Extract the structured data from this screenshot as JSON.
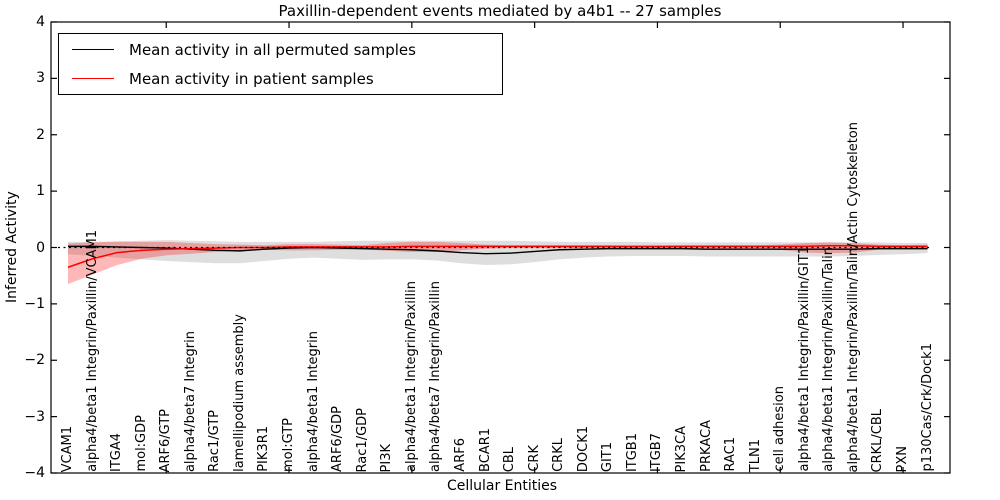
{
  "chart_data": {
    "type": "line",
    "title": "Paxillin-dependent events mediated by a4b1 -- 27 samples",
    "xlabel": "Cellular Entities",
    "ylabel": "Inferred Activity",
    "ylim": [
      -4,
      4
    ],
    "yticks": [
      4,
      3,
      2,
      1,
      0,
      -1,
      -2,
      -3,
      -4
    ],
    "ytick_labels": [
      "4",
      "3",
      "2",
      "1",
      "0",
      "−1",
      "−2",
      "−3",
      "−4"
    ],
    "x_major_tick_every": 5,
    "grid": false,
    "legend_position": "upper left",
    "zero_reference_line": {
      "y": 0,
      "style": "dashed",
      "color": "#000000"
    },
    "categories": [
      "VCAM1",
      "alpha4/beta1 Integrin/Paxillin/VCAM1",
      "ITGA4",
      "mol:GDP",
      "ARF6/GTP",
      "alpha4/beta7 Integrin",
      "Rac1/GTP",
      "lamellipodium assembly",
      "PIK3R1",
      "mol:GTP",
      "alpha4/beta1 Integrin",
      "ARF6/GDP",
      "Rac1/GDP",
      "PI3K",
      "alpha4/beta1 Integrin/Paxillin",
      "alpha4/beta7 Integrin/Paxillin",
      "ARF6",
      "BCAR1",
      "CBL",
      "CRK",
      "CRKL",
      "DOCK1",
      "GIT1",
      "ITGB1",
      "ITGB7",
      "PIK3CA",
      "PRKACA",
      "RAC1",
      "TLN1",
      "cell adhesion",
      "alpha4/beta1 Integrin/Paxillin/GIT1",
      "alpha4/beta1 Integrin/Paxillin/Talin",
      "alpha4/beta1 Integrin/Paxillin/Talin/Actin Cytoskeleton",
      "CRKL/CBL",
      "PXN",
      "p130Cas/Crk/Dock1"
    ],
    "series": [
      {
        "name": "Mean activity in all permuted samples",
        "color": "#000000",
        "band_color": "rgba(0,0,0,0.13)",
        "values": [
          0.02,
          0.02,
          0.01,
          0.0,
          -0.01,
          -0.03,
          -0.05,
          -0.06,
          -0.03,
          -0.01,
          0.0,
          -0.01,
          -0.02,
          -0.03,
          -0.04,
          -0.06,
          -0.09,
          -0.11,
          -0.1,
          -0.07,
          -0.04,
          -0.03,
          -0.02,
          -0.02,
          -0.02,
          -0.02,
          -0.03,
          -0.03,
          -0.03,
          -0.03,
          -0.03,
          -0.03,
          -0.03,
          -0.02,
          -0.02,
          -0.02
        ],
        "band_upper": [
          0.1,
          0.1,
          0.11,
          0.12,
          0.13,
          0.12,
          0.11,
          0.1,
          0.1,
          0.1,
          0.1,
          0.11,
          0.12,
          0.12,
          0.12,
          0.12,
          0.12,
          0.12,
          0.12,
          0.11,
          0.1,
          0.1,
          0.1,
          0.1,
          0.09,
          0.09,
          0.09,
          0.09,
          0.09,
          0.09,
          0.09,
          0.09,
          0.09,
          0.09,
          0.08,
          0.08
        ],
        "band_lower": [
          -0.12,
          -0.15,
          -0.18,
          -0.21,
          -0.24,
          -0.26,
          -0.28,
          -0.28,
          -0.24,
          -0.2,
          -0.18,
          -0.2,
          -0.22,
          -0.21,
          -0.21,
          -0.23,
          -0.28,
          -0.31,
          -0.3,
          -0.26,
          -0.21,
          -0.18,
          -0.16,
          -0.15,
          -0.15,
          -0.15,
          -0.16,
          -0.16,
          -0.16,
          -0.16,
          -0.16,
          -0.16,
          -0.15,
          -0.13,
          -0.12,
          -0.1
        ]
      },
      {
        "name": "Mean activity in patient samples",
        "color": "#ff0000",
        "band_color": "rgba(255,0,0,0.28)",
        "values": [
          -0.35,
          -0.2,
          -0.09,
          -0.05,
          -0.03,
          -0.02,
          -0.01,
          0.0,
          0.0,
          0.01,
          0.01,
          0.01,
          0.01,
          0.01,
          0.02,
          0.02,
          0.02,
          0.02,
          0.02,
          0.02,
          0.02,
          0.02,
          0.02,
          0.02,
          0.02,
          0.02,
          0.02,
          0.02,
          0.02,
          0.02,
          0.02,
          0.03,
          0.03,
          0.02,
          0.02,
          0.02
        ],
        "band_upper": [
          0.07,
          0.09,
          0.1,
          0.1,
          0.1,
          0.08,
          0.06,
          0.05,
          0.04,
          0.06,
          0.06,
          0.05,
          0.04,
          0.08,
          0.1,
          0.1,
          0.08,
          0.05,
          0.04,
          0.04,
          0.04,
          0.04,
          0.04,
          0.03,
          0.03,
          0.04,
          0.04,
          0.04,
          0.04,
          0.05,
          0.08,
          0.09,
          0.08,
          0.05,
          0.04,
          0.05
        ],
        "band_lower": [
          -0.65,
          -0.48,
          -0.31,
          -0.2,
          -0.14,
          -0.11,
          -0.08,
          -0.05,
          -0.04,
          -0.05,
          -0.05,
          -0.04,
          -0.03,
          -0.06,
          -0.08,
          -0.08,
          -0.05,
          -0.02,
          -0.01,
          -0.01,
          -0.01,
          -0.01,
          -0.01,
          -0.01,
          -0.01,
          -0.02,
          -0.02,
          -0.02,
          -0.02,
          -0.04,
          -0.09,
          -0.1,
          -0.09,
          -0.04,
          -0.02,
          -0.02
        ]
      }
    ]
  }
}
